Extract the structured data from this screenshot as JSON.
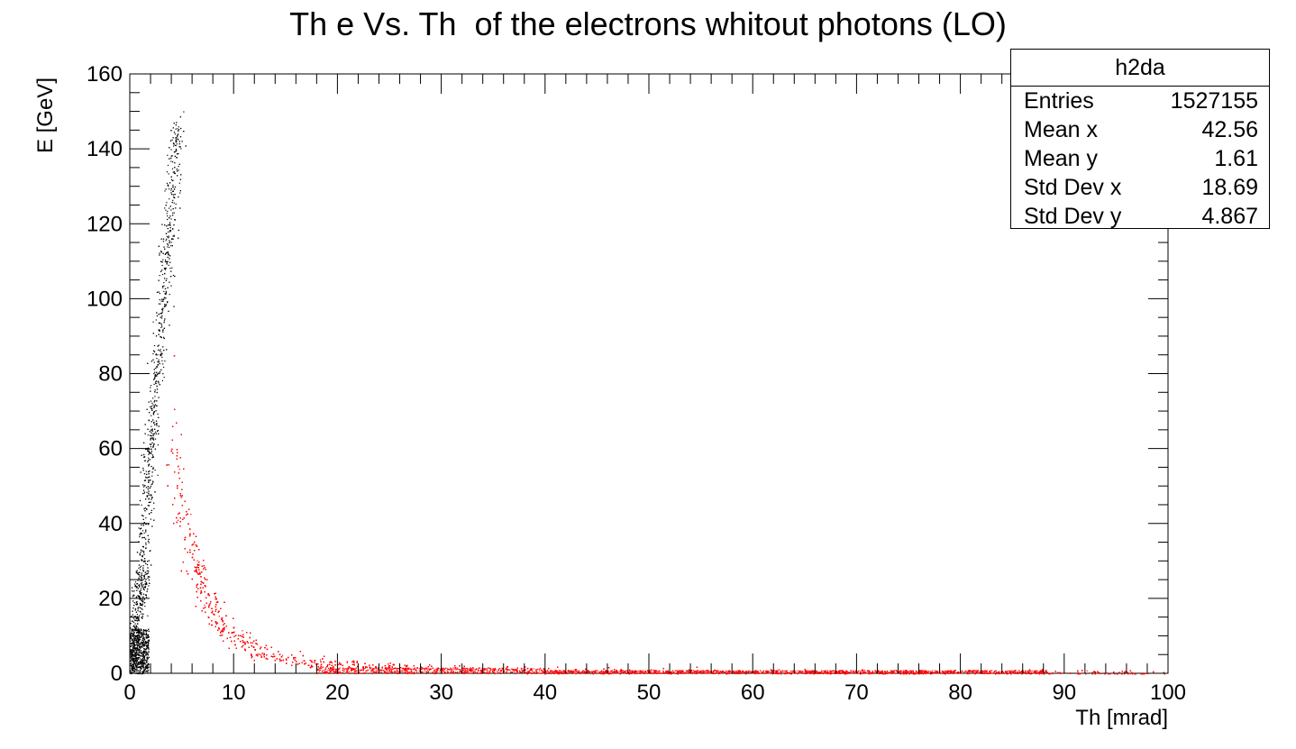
{
  "title": "Th e Vs. Th  of the electrons whitout photons (LO)",
  "stats_box": {
    "name": "h2da",
    "rows": [
      {
        "label": "Entries",
        "value": "1527155"
      },
      {
        "label": "Mean x",
        "value": "42.56"
      },
      {
        "label": "Mean y",
        "value": "1.61"
      },
      {
        "label": "Std Dev x",
        "value": "18.69"
      },
      {
        "label": "Std Dev y",
        "value": "4.867"
      }
    ]
  },
  "chart_data": {
    "type": "scatter",
    "xlabel": "Th [mrad]",
    "ylabel": "E [GeV]",
    "xlim": [
      0,
      100
    ],
    "ylim": [
      0,
      160
    ],
    "x_ticks": [
      0,
      10,
      20,
      30,
      40,
      50,
      60,
      70,
      80,
      90,
      100
    ],
    "y_ticks": [
      0,
      20,
      40,
      60,
      80,
      100,
      120,
      140,
      160
    ],
    "grid": false,
    "series": [
      {
        "color": "#000000",
        "points": [
          [
            0.2,
            1
          ],
          [
            0.3,
            5
          ],
          [
            0.5,
            10
          ],
          [
            0.7,
            15
          ],
          [
            0.9,
            20
          ],
          [
            1.1,
            25
          ],
          [
            1.3,
            30
          ],
          [
            1.5,
            40
          ],
          [
            1.7,
            50
          ],
          [
            2.0,
            60
          ],
          [
            2.3,
            70
          ],
          [
            2.6,
            80
          ],
          [
            2.9,
            90
          ],
          [
            3.2,
            100
          ],
          [
            3.5,
            110
          ],
          [
            3.8,
            120
          ],
          [
            4.1,
            130
          ],
          [
            4.4,
            140
          ],
          [
            4.6,
            145
          ]
        ]
      },
      {
        "color": "#ff0000",
        "points": [
          [
            4,
            60
          ],
          [
            5,
            45
          ],
          [
            6,
            32
          ],
          [
            7,
            23
          ],
          [
            8,
            16
          ],
          [
            10,
            10
          ],
          [
            12,
            6.5
          ],
          [
            15,
            4
          ],
          [
            20,
            2.5
          ],
          [
            25,
            1.6
          ],
          [
            30,
            1.2
          ],
          [
            40,
            0.8
          ],
          [
            50,
            0.6
          ],
          [
            60,
            0.5
          ],
          [
            70,
            0.4
          ],
          [
            80,
            0.3
          ],
          [
            90,
            0.2
          ],
          [
            98,
            0.1
          ]
        ]
      }
    ]
  }
}
